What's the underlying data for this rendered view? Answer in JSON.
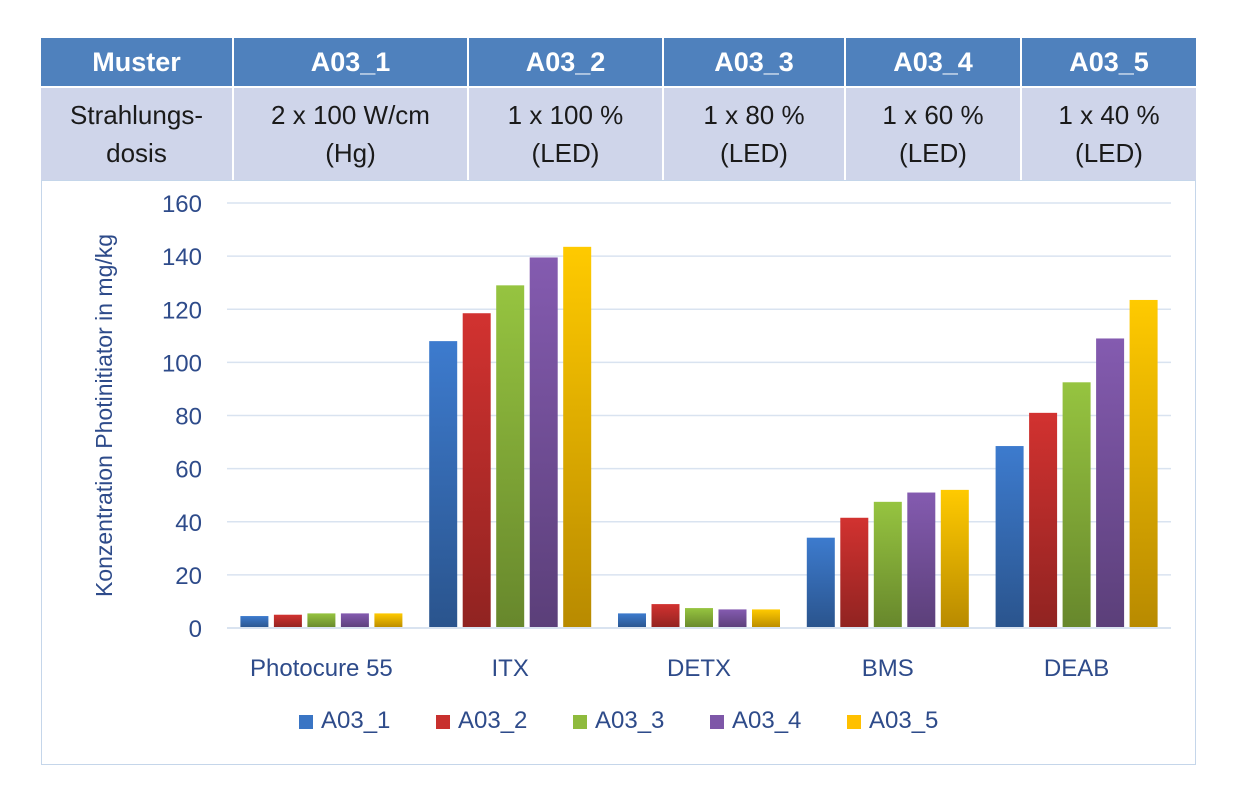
{
  "table": {
    "header": [
      "Muster",
      "A03_1",
      "A03_2",
      "A03_3",
      "A03_4",
      "A03_5"
    ],
    "row_label": [
      "Strahlungs-",
      "dosis"
    ],
    "cells": [
      [
        "2 x 100 W/cm",
        "(Hg)"
      ],
      [
        "1 x 100 %",
        "(LED)"
      ],
      [
        "1 x 80 %",
        "(LED)"
      ],
      [
        "1 x 60 %",
        "(LED)"
      ],
      [
        "1 x 40 %",
        "(LED)"
      ]
    ]
  },
  "chart_data": {
    "type": "bar",
    "categories": [
      "Photocure 55",
      "ITX",
      "DETX",
      "BMS",
      "DEAB"
    ],
    "series": [
      {
        "name": "A03_1",
        "color": "#3a75c4",
        "values": [
          4.5,
          108,
          5.5,
          34,
          68.5
        ]
      },
      {
        "name": "A03_2",
        "color": "#c8302e",
        "values": [
          5,
          118.5,
          9,
          41.5,
          81
        ]
      },
      {
        "name": "A03_3",
        "color": "#8fbb3d",
        "values": [
          5.5,
          129,
          7.5,
          47.5,
          92.5
        ]
      },
      {
        "name": "A03_4",
        "color": "#7e57a8",
        "values": [
          5.5,
          139.5,
          7,
          51,
          109
        ]
      },
      {
        "name": "A03_5",
        "color": "#ffc000",
        "values": [
          5.5,
          143.5,
          7,
          52,
          123.5
        ]
      }
    ],
    "ylabel": "Konzentration Photinitiator in mg/kg",
    "ylim": [
      0,
      160
    ],
    "yticks": [
      0,
      20,
      40,
      60,
      80,
      100,
      120,
      140,
      160
    ],
    "grid": true,
    "legend": "bottom"
  }
}
